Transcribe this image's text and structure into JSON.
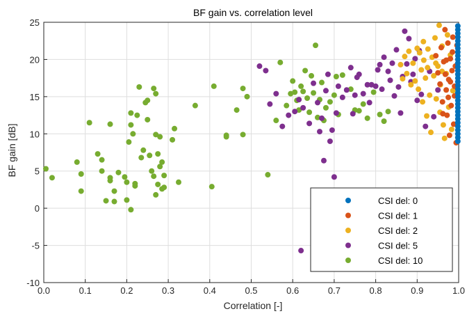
{
  "chart_data": {
    "type": "scatter",
    "title": "BF gain vs. correlation level",
    "xlabel": "Correlation [-]",
    "ylabel": "BF gain [dB]",
    "xlim": [
      0,
      1
    ],
    "ylim": [
      -10,
      25
    ],
    "xticks": [
      0,
      0.1,
      0.2,
      0.3,
      0.4,
      0.5,
      0.6,
      0.7,
      0.8,
      0.9,
      1
    ],
    "xtick_labels": [
      "0.0",
      "0.1",
      "0.2",
      "0.3",
      "0.4",
      "0.5",
      "0.6",
      "0.7",
      "0.8",
      "0.9",
      "1.0"
    ],
    "yticks": [
      -10,
      -5,
      0,
      5,
      10,
      15,
      20,
      25
    ],
    "ytick_labels": [
      "-10",
      "-5",
      "0",
      "5",
      "10",
      "15",
      "20",
      "25"
    ],
    "grid": true,
    "legend_position": "bottom-right",
    "series": [
      {
        "name": "CSI del: 10",
        "color": "#77AC30",
        "points": [
          [
            0.005,
            5.3
          ],
          [
            0.02,
            4.1
          ],
          [
            0.08,
            6.2
          ],
          [
            0.09,
            4.6
          ],
          [
            0.09,
            2.3
          ],
          [
            0.11,
            11.5
          ],
          [
            0.13,
            7.3
          ],
          [
            0.14,
            6.5
          ],
          [
            0.14,
            5.0
          ],
          [
            0.15,
            1.0
          ],
          [
            0.16,
            11.3
          ],
          [
            0.16,
            4.1
          ],
          [
            0.16,
            3.7
          ],
          [
            0.17,
            0.9
          ],
          [
            0.17,
            2.3
          ],
          [
            0.18,
            4.8
          ],
          [
            0.195,
            4.2
          ],
          [
            0.2,
            3.5
          ],
          [
            0.2,
            1.1
          ],
          [
            0.205,
            8.9
          ],
          [
            0.21,
            11.2
          ],
          [
            0.21,
            12.8
          ],
          [
            0.21,
            -0.2
          ],
          [
            0.215,
            10.0
          ],
          [
            0.22,
            3.3
          ],
          [
            0.22,
            3.0
          ],
          [
            0.225,
            12.5
          ],
          [
            0.23,
            16.3
          ],
          [
            0.235,
            6.8
          ],
          [
            0.24,
            7.8
          ],
          [
            0.245,
            14.2
          ],
          [
            0.25,
            14.5
          ],
          [
            0.25,
            11.9
          ],
          [
            0.255,
            7.1
          ],
          [
            0.26,
            5.0
          ],
          [
            0.265,
            4.3
          ],
          [
            0.265,
            16.1
          ],
          [
            0.27,
            1.8
          ],
          [
            0.27,
            15.4
          ],
          [
            0.27,
            9.9
          ],
          [
            0.275,
            7.3
          ],
          [
            0.275,
            3.2
          ],
          [
            0.28,
            9.6
          ],
          [
            0.28,
            5.6
          ],
          [
            0.285,
            6.2
          ],
          [
            0.285,
            2.6
          ],
          [
            0.29,
            4.4
          ],
          [
            0.29,
            2.8
          ],
          [
            0.31,
            9.2
          ],
          [
            0.315,
            10.7
          ],
          [
            0.325,
            3.5
          ],
          [
            0.365,
            13.8
          ],
          [
            0.405,
            2.9
          ],
          [
            0.41,
            16.4
          ],
          [
            0.44,
            9.8
          ],
          [
            0.44,
            9.6
          ],
          [
            0.465,
            13.2
          ],
          [
            0.48,
            16.1
          ],
          [
            0.48,
            9.9
          ],
          [
            0.49,
            15.0
          ],
          [
            0.54,
            4.5
          ],
          [
            0.56,
            11.8
          ],
          [
            0.57,
            19.6
          ],
          [
            0.585,
            13.8
          ],
          [
            0.595,
            15.4
          ],
          [
            0.6,
            17.1
          ],
          [
            0.605,
            15.6
          ],
          [
            0.61,
            14.5
          ],
          [
            0.615,
            13.2
          ],
          [
            0.62,
            16.4
          ],
          [
            0.625,
            15.7
          ],
          [
            0.63,
            18.5
          ],
          [
            0.635,
            14.8
          ],
          [
            0.64,
            12.9
          ],
          [
            0.645,
            17.8
          ],
          [
            0.65,
            15.5
          ],
          [
            0.655,
            21.9
          ],
          [
            0.66,
            12.2
          ],
          [
            0.665,
            14.6
          ],
          [
            0.67,
            16.9
          ],
          [
            0.675,
            11.8
          ],
          [
            0.68,
            13.5
          ],
          [
            0.69,
            14.3
          ],
          [
            0.7,
            15.2
          ],
          [
            0.705,
            17.7
          ],
          [
            0.71,
            12.6
          ],
          [
            0.72,
            17.9
          ],
          [
            0.74,
            16.0
          ],
          [
            0.75,
            13.2
          ],
          [
            0.76,
            13.1
          ],
          [
            0.77,
            14.0
          ],
          [
            0.78,
            12.1
          ],
          [
            0.795,
            15.6
          ],
          [
            0.81,
            12.6
          ],
          [
            0.82,
            11.7
          ],
          [
            0.83,
            13.0
          ]
        ]
      },
      {
        "name": "CSI del: 5",
        "color": "#7E2F8E",
        "points": [
          [
            0.52,
            19.1
          ],
          [
            0.535,
            18.5
          ],
          [
            0.545,
            14.0
          ],
          [
            0.56,
            15.4
          ],
          [
            0.575,
            11.0
          ],
          [
            0.59,
            12.5
          ],
          [
            0.605,
            13.0
          ],
          [
            0.615,
            14.6
          ],
          [
            0.62,
            -5.7
          ],
          [
            0.625,
            13.5
          ],
          [
            0.64,
            11.4
          ],
          [
            0.65,
            16.8
          ],
          [
            0.66,
            14.2
          ],
          [
            0.665,
            10.3
          ],
          [
            0.67,
            12.1
          ],
          [
            0.675,
            6.4
          ],
          [
            0.68,
            15.8
          ],
          [
            0.685,
            18.0
          ],
          [
            0.69,
            9.0
          ],
          [
            0.695,
            10.5
          ],
          [
            0.7,
            4.2
          ],
          [
            0.705,
            12.8
          ],
          [
            0.71,
            16.4
          ],
          [
            0.72,
            14.9
          ],
          [
            0.73,
            15.9
          ],
          [
            0.74,
            18.9
          ],
          [
            0.745,
            12.7
          ],
          [
            0.75,
            15.2
          ],
          [
            0.755,
            17.6
          ],
          [
            0.76,
            18.0
          ],
          [
            0.77,
            15.4
          ],
          [
            0.78,
            16.6
          ],
          [
            0.785,
            14.2
          ],
          [
            0.79,
            16.6
          ],
          [
            0.8,
            16.4
          ],
          [
            0.805,
            18.6
          ],
          [
            0.81,
            19.3
          ],
          [
            0.815,
            16.0
          ],
          [
            0.82,
            20.3
          ],
          [
            0.83,
            18.4
          ],
          [
            0.835,
            17.2
          ],
          [
            0.84,
            19.5
          ],
          [
            0.845,
            15.1
          ],
          [
            0.85,
            21.3
          ],
          [
            0.855,
            16.3
          ],
          [
            0.86,
            12.8
          ],
          [
            0.865,
            17.7
          ],
          [
            0.87,
            23.8
          ],
          [
            0.875,
            19.4
          ],
          [
            0.88,
            22.8
          ],
          [
            0.885,
            17.0
          ],
          [
            0.89,
            18.0
          ],
          [
            0.895,
            20.1
          ],
          [
            0.9,
            14.5
          ],
          [
            0.905,
            21.2
          ],
          [
            0.91,
            15.3
          ],
          [
            0.92,
            11.0
          ],
          [
            0.93,
            18.4
          ],
          [
            0.94,
            12.3
          ],
          [
            0.95,
            15.9
          ]
        ]
      },
      {
        "name": "CSI del: 2",
        "color": "#EDB120",
        "points": [
          [
            0.86,
            19.3
          ],
          [
            0.865,
            17.4
          ],
          [
            0.87,
            20.4
          ],
          [
            0.875,
            18.1
          ],
          [
            0.88,
            21.1
          ],
          [
            0.885,
            16.6
          ],
          [
            0.89,
            19.5
          ],
          [
            0.895,
            17.1
          ],
          [
            0.9,
            21.5
          ],
          [
            0.903,
            16.0
          ],
          [
            0.906,
            20.9
          ],
          [
            0.91,
            18.6
          ],
          [
            0.913,
            14.3
          ],
          [
            0.916,
            19.9
          ],
          [
            0.92,
            17.5
          ],
          [
            0.923,
            12.4
          ],
          [
            0.926,
            21.4
          ],
          [
            0.93,
            15.2
          ],
          [
            0.933,
            10.2
          ],
          [
            0.936,
            20.3
          ],
          [
            0.94,
            17.8
          ],
          [
            0.943,
            22.9
          ],
          [
            0.946,
            14.7
          ],
          [
            0.95,
            19.1
          ],
          [
            0.953,
            24.6
          ],
          [
            0.956,
            16.6
          ],
          [
            0.96,
            21.8
          ],
          [
            0.963,
            11.2
          ],
          [
            0.966,
            9.4
          ],
          [
            0.97,
            18.1
          ],
          [
            0.973,
            23.3
          ],
          [
            0.976,
            13.6
          ],
          [
            0.98,
            20.6
          ],
          [
            0.983,
            10.6
          ],
          [
            0.986,
            15.8
          ],
          [
            0.96,
            18.4
          ],
          [
            0.945,
            19.5
          ],
          [
            0.925,
            18.9
          ],
          [
            0.915,
            22.4
          ],
          [
            0.955,
            12.9
          ]
        ]
      },
      {
        "name": "CSI del: 1",
        "color": "#D95319",
        "points": [
          [
            0.945,
            20.5
          ],
          [
            0.95,
            18.2
          ],
          [
            0.955,
            16.7
          ],
          [
            0.958,
            21.6
          ],
          [
            0.961,
            14.3
          ],
          [
            0.964,
            19.7
          ],
          [
            0.967,
            24.0
          ],
          [
            0.97,
            15.9
          ],
          [
            0.972,
            12.5
          ],
          [
            0.974,
            22.2
          ],
          [
            0.976,
            17.3
          ],
          [
            0.978,
            9.8
          ],
          [
            0.98,
            20.1
          ],
          [
            0.982,
            13.8
          ],
          [
            0.984,
            18.5
          ],
          [
            0.986,
            23.0
          ],
          [
            0.988,
            11.3
          ],
          [
            0.99,
            16.4
          ],
          [
            0.992,
            19.1
          ],
          [
            0.994,
            8.8
          ],
          [
            0.996,
            21.9
          ],
          [
            0.968,
            18.0
          ],
          [
            0.962,
            12.7
          ],
          [
            0.975,
            14.9
          ],
          [
            0.985,
            21.0
          ],
          [
            0.99,
            15.1
          ],
          [
            0.97,
            19.9
          ],
          [
            0.98,
            17.0
          ]
        ]
      },
      {
        "name": "CSI del: 0",
        "color": "#0072BD",
        "points": [
          [
            0.998,
            24.5
          ],
          [
            0.998,
            23.5
          ],
          [
            0.998,
            22.5
          ],
          [
            0.998,
            21.5
          ],
          [
            0.998,
            20.5
          ],
          [
            0.998,
            19.5
          ],
          [
            0.998,
            18.5
          ],
          [
            0.998,
            17.5
          ],
          [
            0.998,
            16.5
          ],
          [
            0.998,
            15.5
          ],
          [
            0.998,
            14.5
          ],
          [
            0.998,
            13.5
          ],
          [
            0.998,
            12.5
          ],
          [
            0.998,
            11.5
          ],
          [
            0.998,
            10.5
          ],
          [
            0.998,
            9.5
          ],
          [
            0.998,
            9.0
          ],
          [
            0.998,
            24.0
          ],
          [
            0.998,
            23.0
          ],
          [
            0.998,
            22.0
          ],
          [
            0.998,
            21.0
          ],
          [
            0.998,
            20.0
          ],
          [
            0.998,
            19.0
          ],
          [
            0.998,
            18.0
          ],
          [
            0.998,
            17.0
          ],
          [
            0.998,
            16.0
          ],
          [
            0.998,
            15.0
          ],
          [
            0.998,
            14.0
          ],
          [
            0.998,
            13.0
          ],
          [
            0.998,
            12.0
          ],
          [
            0.998,
            11.0
          ],
          [
            0.998,
            10.0
          ]
        ]
      }
    ],
    "legend_order": [
      "CSI del: 0",
      "CSI del: 1",
      "CSI del: 2",
      "CSI del: 5",
      "CSI del: 10"
    ]
  }
}
